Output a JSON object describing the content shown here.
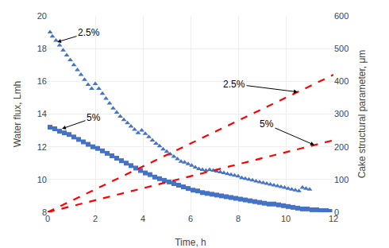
{
  "chart_data": {
    "type": "scatter",
    "xlabel": "Time, h",
    "ylabel": "Water flux, Lmh",
    "y2label": "Cake structural parameter, μm",
    "xlim": [
      0,
      12
    ],
    "ylim": [
      8,
      20
    ],
    "y2lim": [
      0,
      600
    ],
    "xticks": [
      0,
      2,
      4,
      6,
      8,
      10,
      12
    ],
    "yticks": [
      8,
      10,
      12,
      14,
      16,
      18,
      20
    ],
    "y2ticks": [
      0,
      100,
      200,
      300,
      400,
      500,
      600
    ],
    "grid": true,
    "series": [
      {
        "type": "scatter",
        "marker": "triangle",
        "color": "#4472C4",
        "x": [
          0.1,
          0.2,
          0.35,
          0.5,
          0.65,
          0.8,
          0.95,
          1.1,
          1.25,
          1.4,
          1.55,
          1.7,
          1.85,
          2.0,
          2.15,
          2.3,
          2.45,
          2.6,
          2.75,
          2.9,
          3.05,
          3.2,
          3.35,
          3.5,
          3.65,
          3.8,
          3.95,
          4.1,
          4.25,
          4.4,
          4.55,
          4.7,
          4.85,
          5.0,
          5.15,
          5.3,
          5.45,
          5.6,
          5.75,
          5.9,
          6.05,
          6.2,
          6.35,
          6.5,
          6.65,
          6.8,
          6.95,
          7.1,
          7.25,
          7.4,
          7.55,
          7.7,
          7.85,
          8.0,
          8.15,
          8.3,
          8.45,
          8.6,
          8.75,
          8.9,
          9.05,
          9.2,
          9.35,
          9.5,
          9.65,
          9.8,
          9.95,
          10.1,
          10.25,
          10.4,
          10.55,
          10.7,
          10.85,
          11.0
        ],
        "values": [
          19.0,
          18.75,
          18.5,
          18.2,
          17.9,
          17.6,
          17.3,
          17.0,
          16.7,
          16.4,
          16.1,
          15.8,
          15.55,
          15.85,
          15.55,
          15.25,
          14.95,
          14.65,
          14.35,
          14.1,
          13.85,
          13.65,
          13.45,
          13.25,
          13.05,
          12.85,
          13.0,
          12.8,
          12.6,
          12.4,
          12.2,
          12.05,
          11.85,
          11.7,
          11.55,
          11.4,
          11.25,
          11.1,
          11.05,
          10.95,
          10.85,
          10.75,
          10.65,
          10.6,
          10.55,
          10.6,
          10.55,
          10.5,
          10.45,
          10.4,
          10.35,
          10.3,
          10.25,
          10.2,
          10.1,
          10.05,
          10.0,
          9.95,
          9.9,
          9.85,
          9.8,
          9.75,
          9.7,
          9.65,
          9.6,
          9.55,
          9.5,
          9.45,
          9.4,
          9.35,
          9.3,
          9.5,
          9.45,
          9.4
        ]
      },
      {
        "type": "scatter",
        "marker": "square",
        "color": "#4472C4",
        "x": [
          0.1,
          0.3,
          0.5,
          0.7,
          0.9,
          1.1,
          1.3,
          1.5,
          1.7,
          1.9,
          2.1,
          2.3,
          2.5,
          2.7,
          2.9,
          3.1,
          3.3,
          3.5,
          3.7,
          3.9,
          4.1,
          4.3,
          4.5,
          4.7,
          4.9,
          5.1,
          5.3,
          5.5,
          5.7,
          5.9,
          6.1,
          6.3,
          6.5,
          6.7,
          6.9,
          7.1,
          7.3,
          7.5,
          7.7,
          7.9,
          8.1,
          8.3,
          8.5,
          8.7,
          8.9,
          9.1,
          9.3,
          9.5,
          9.7,
          9.9,
          10.1,
          10.3,
          10.5,
          10.7,
          10.9,
          11.1,
          11.3,
          11.5,
          11.7,
          11.85
        ],
        "values": [
          13.2,
          13.1,
          12.95,
          12.85,
          12.75,
          12.6,
          12.45,
          12.3,
          12.15,
          12.0,
          11.9,
          11.75,
          11.6,
          11.45,
          11.3,
          11.15,
          11.0,
          10.85,
          10.7,
          10.55,
          10.4,
          10.3,
          10.15,
          10.05,
          9.95,
          9.85,
          9.75,
          9.65,
          9.55,
          9.45,
          9.35,
          9.3,
          9.2,
          9.15,
          9.1,
          9.05,
          9.0,
          8.95,
          8.9,
          8.85,
          8.8,
          8.75,
          8.7,
          8.65,
          8.6,
          8.55,
          8.5,
          8.5,
          8.45,
          8.4,
          8.35,
          8.3,
          8.25,
          8.2,
          8.2,
          8.15,
          8.15,
          8.1,
          8.1,
          8.05
        ]
      },
      {
        "type": "line",
        "line_style": "dashed",
        "color": "#FF0000",
        "axis": "y2",
        "x": [
          0,
          12
        ],
        "values": [
          0,
          420
        ]
      },
      {
        "type": "line",
        "line_style": "dashed",
        "color": "#FF0000",
        "axis": "y2",
        "x": [
          0,
          12
        ],
        "values": [
          0,
          220
        ]
      }
    ],
    "annotations": [
      {
        "text": "2.5%",
        "x": 0.4,
        "y": 18.4
      },
      {
        "text": "5%",
        "x": 0.6,
        "y": 13.1
      },
      {
        "text": "2.5%",
        "x": 10.5,
        "y": 367.5,
        "axis": "y2"
      },
      {
        "text": "5%",
        "x": 11.2,
        "y": 205.33333333333334,
        "axis": "y2"
      }
    ]
  }
}
